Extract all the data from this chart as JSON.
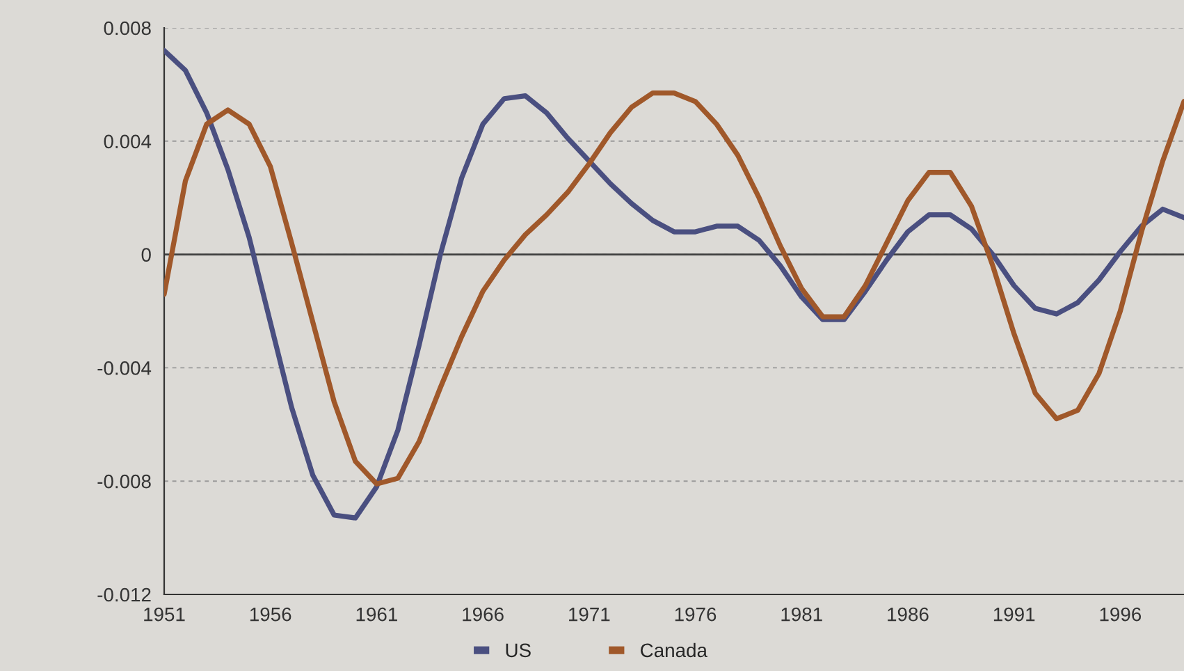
{
  "chart_data": {
    "type": "line",
    "x": [
      1951,
      1952,
      1953,
      1954,
      1955,
      1956,
      1957,
      1958,
      1959,
      1960,
      1961,
      1962,
      1963,
      1964,
      1965,
      1966,
      1967,
      1968,
      1969,
      1970,
      1971,
      1972,
      1973,
      1974,
      1975,
      1976,
      1977,
      1978,
      1979,
      1980,
      1981,
      1982,
      1983,
      1984,
      1985,
      1986,
      1987,
      1988,
      1989,
      1990,
      1991,
      1992,
      1993,
      1994,
      1995,
      1996,
      1997,
      1998,
      1999
    ],
    "series": [
      {
        "name": "US",
        "color": "#4a4f80",
        "values": [
          0.0072,
          0.0065,
          0.005,
          0.003,
          0.0006,
          -0.0024,
          -0.0054,
          -0.0078,
          -0.0092,
          -0.0093,
          -0.0082,
          -0.0062,
          -0.0032,
          0.0,
          0.0027,
          0.0046,
          0.0055,
          0.0056,
          0.005,
          0.0041,
          0.0033,
          0.0025,
          0.0018,
          0.0012,
          0.0008,
          0.0008,
          0.001,
          0.001,
          0.0005,
          -0.0004,
          -0.0015,
          -0.0023,
          -0.0023,
          -0.0013,
          -0.0002,
          0.0008,
          0.0014,
          0.0014,
          0.0009,
          0.0,
          -0.0011,
          -0.0019,
          -0.0021,
          -0.0017,
          -0.0009,
          0.0001,
          0.001,
          0.0016,
          0.0013
        ]
      },
      {
        "name": "Canada",
        "color": "#a0582a",
        "values": [
          -0.0014,
          0.0026,
          0.0046,
          0.0051,
          0.0046,
          0.0031,
          0.0004,
          -0.0024,
          -0.0052,
          -0.0073,
          -0.0081,
          -0.0079,
          -0.0066,
          -0.0047,
          -0.0029,
          -0.0013,
          -0.0002,
          0.0007,
          0.0014,
          0.0022,
          0.0032,
          0.0043,
          0.0052,
          0.0057,
          0.0057,
          0.0054,
          0.0046,
          0.0035,
          0.002,
          0.0003,
          -0.0012,
          -0.0022,
          -0.0022,
          -0.0011,
          0.0004,
          0.0019,
          0.0029,
          0.0029,
          0.0017,
          -0.0004,
          -0.0028,
          -0.0049,
          -0.0058,
          -0.0055,
          -0.0042,
          -0.002,
          0.0008,
          0.0033,
          0.0054
        ]
      }
    ],
    "xlim": [
      1951,
      1999
    ],
    "xticks": [
      1951,
      1956,
      1961,
      1966,
      1971,
      1976,
      1981,
      1986,
      1991,
      1996
    ],
    "ylim": [
      -0.012,
      0.008
    ],
    "yticks": [
      {
        "value": 0.008,
        "label": "0.008"
      },
      {
        "value": 0.004,
        "label": "0.004"
      },
      {
        "value": 0,
        "label": "0"
      },
      {
        "value": -0.004,
        "label": "-0.004"
      },
      {
        "value": -0.008,
        "label": "-0.008"
      },
      {
        "value": -0.012,
        "label": "-0.012"
      }
    ],
    "ref_lines": [
      {
        "axis": "y",
        "value": 0,
        "color": "#404040",
        "line_style": "solid"
      }
    ],
    "grid": "y",
    "legend": "bottom",
    "marker": "none",
    "line_style": "solid"
  }
}
